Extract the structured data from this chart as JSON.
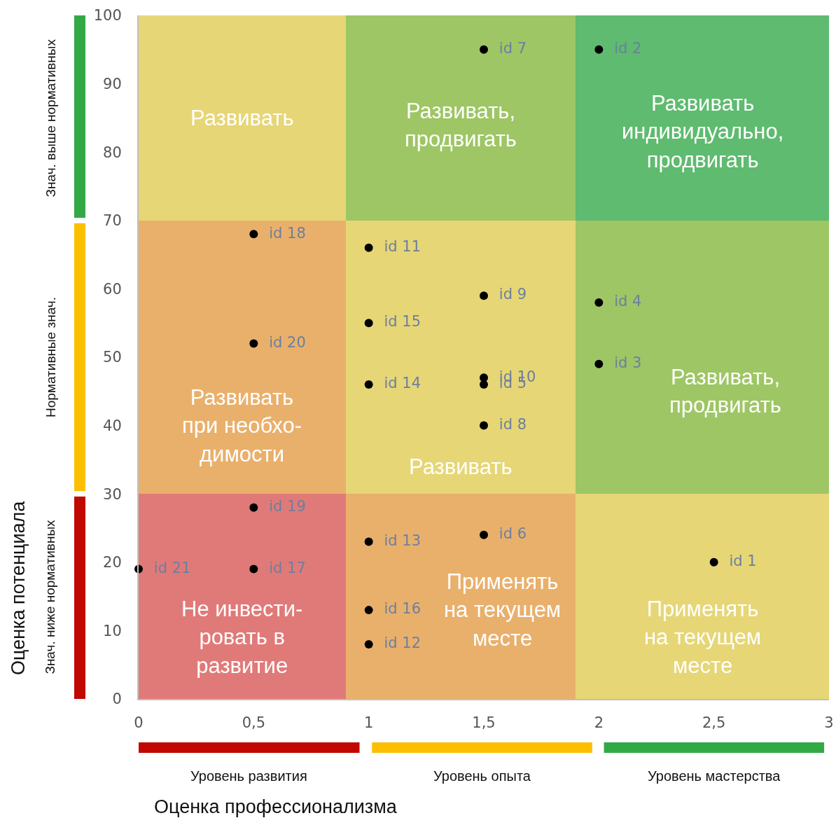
{
  "chart_data": {
    "type": "scatter",
    "xlabel": "Оценка профессионализма",
    "ylabel": "Оценка потенциала",
    "xlim": [
      0,
      3
    ],
    "ylim": [
      0,
      100
    ],
    "xticks": [
      0,
      {
        "value": 0.5,
        "label": "0,5"
      },
      1,
      {
        "value": 1.5,
        "label": "1,5"
      },
      2,
      {
        "value": 2.5,
        "label": "2,5"
      },
      3
    ],
    "yticks": [
      0,
      10,
      20,
      30,
      40,
      50,
      60,
      70,
      80,
      90,
      100
    ],
    "marker": "circle",
    "stacked": true,
    "series": [
      {
        "type": "bar",
        "x": [
          0.45,
          1.4,
          2.45
        ],
        "values": [
          30,
          30,
          30
        ],
        "colors": [
          "#e07a78",
          "#e9b06c",
          "#e6d676"
        ]
      },
      {
        "type": "bar",
        "x": [
          0.45,
          1.4,
          2.45
        ],
        "values": [
          40,
          40,
          40
        ],
        "colors": [
          "#e9b06c",
          "#e6d676",
          "#9ec665"
        ]
      },
      {
        "type": "bar",
        "x": [
          0.45,
          1.4,
          2.45
        ],
        "values": [
          30,
          30,
          30
        ],
        "colors": [
          "#e6d676",
          "#9ec665",
          "#5ebb6f"
        ]
      },
      {
        "name": "id 1",
        "color": "#000000",
        "x": [
          2.5
        ],
        "values": [
          20
        ]
      },
      {
        "name": "id 2",
        "color": "#000000",
        "x": [
          2
        ],
        "values": [
          95
        ]
      },
      {
        "name": "id 3",
        "color": "#000000",
        "x": [
          2
        ],
        "values": [
          49
        ]
      },
      {
        "name": "id 4",
        "color": "#000000",
        "x": [
          2
        ],
        "values": [
          58
        ]
      },
      {
        "name": "id 5",
        "color": "#000000",
        "x": [
          1.5
        ],
        "values": [
          46
        ]
      },
      {
        "name": "id 6",
        "color": "#000000",
        "x": [
          1.5
        ],
        "values": [
          24
        ]
      },
      {
        "name": "id 7",
        "color": "#000000",
        "x": [
          1.5
        ],
        "values": [
          95
        ]
      },
      {
        "name": "id 8",
        "color": "#000000",
        "x": [
          1.5
        ],
        "values": [
          40
        ]
      },
      {
        "name": "id 9",
        "color": "#000000",
        "x": [
          1.5
        ],
        "values": [
          59
        ]
      },
      {
        "name": "id 10",
        "color": "#000000",
        "x": [
          1.5
        ],
        "values": [
          47
        ]
      },
      {
        "name": "id 11",
        "color": "#000000",
        "x": [
          1
        ],
        "values": [
          66
        ]
      },
      {
        "name": "id 12",
        "color": "#000000",
        "x": [
          1
        ],
        "values": [
          8
        ]
      },
      {
        "name": "id 13",
        "color": "#000000",
        "x": [
          1
        ],
        "values": [
          23
        ]
      },
      {
        "name": "id 14",
        "color": "#000000",
        "x": [
          1
        ],
        "values": [
          46
        ]
      },
      {
        "name": "id 15",
        "color": "#000000",
        "x": [
          1
        ],
        "values": [
          55
        ]
      },
      {
        "name": "id 16",
        "color": "#000000",
        "x": [
          1
        ],
        "values": [
          13
        ]
      },
      {
        "name": "id 17",
        "color": "#000000",
        "x": [
          0.5
        ],
        "values": [
          19
        ]
      },
      {
        "name": "id 18",
        "color": "#000000",
        "x": [
          0.5
        ],
        "values": [
          68
        ]
      },
      {
        "name": "id 19",
        "color": "#000000",
        "x": [
          0.5
        ],
        "values": [
          28
        ]
      },
      {
        "name": "id 20",
        "color": "#000000",
        "x": [
          0.5
        ],
        "values": [
          52
        ]
      },
      {
        "name": "id 21",
        "color": "#000000",
        "x": [
          0
        ],
        "values": [
          19
        ]
      }
    ],
    "annotations": [
      "Развивать",
      "Развивать,\nпродвигать",
      "Развивать\nиндивидуально,\nпродвигать",
      "Развивать\nпри необхо-\nдимости",
      "Развивать",
      "Развивать,\nпродвигать",
      "Не инвести-\nровать в\nразвитие",
      "Применять\nна текущем\nместе",
      "Применять\nна текущем\nместе",
      "Знач. выше нормативных",
      "Нормативные знач.",
      "Знач. ниже нормативных",
      "Уровень развития",
      "Уровень опыта",
      "Уровень мастерства"
    ]
  }
}
